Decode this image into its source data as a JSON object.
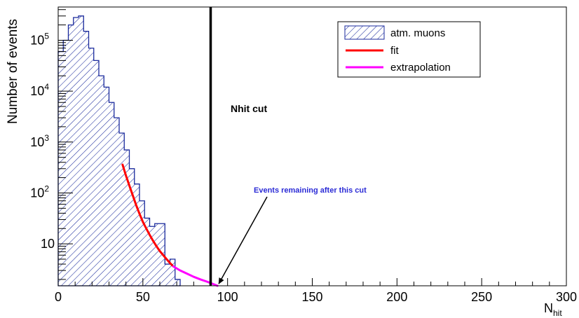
{
  "chart_data": {
    "type": "histogram",
    "xlabel": "N",
    "xlabel_sub": "hit",
    "ylabel": "Number of events",
    "x_range": [
      0,
      300
    ],
    "y_range": [
      1.5,
      450000
    ],
    "y_scale": "log",
    "x_ticks": [
      0,
      50,
      100,
      150,
      200,
      250,
      300
    ],
    "y_ticks": [
      {
        "value": 10,
        "base": "10",
        "exp": ""
      },
      {
        "value": 100,
        "base": "10",
        "exp": "2"
      },
      {
        "value": 1000,
        "base": "10",
        "exp": "3"
      },
      {
        "value": 10000,
        "base": "10",
        "exp": "4"
      },
      {
        "value": 100000,
        "base": "10",
        "exp": "5"
      }
    ],
    "bin_width": 3,
    "series": [
      {
        "name": "atm. muons",
        "kind": "histogram",
        "color": "#1a2a9c",
        "bins": [
          {
            "x": 0,
            "y": 60000
          },
          {
            "x": 3,
            "y": 100000
          },
          {
            "x": 6,
            "y": 200000
          },
          {
            "x": 9,
            "y": 280000
          },
          {
            "x": 12,
            "y": 300000
          },
          {
            "x": 15,
            "y": 150000
          },
          {
            "x": 18,
            "y": 70000
          },
          {
            "x": 21,
            "y": 40000
          },
          {
            "x": 24,
            "y": 20000
          },
          {
            "x": 27,
            "y": 12000
          },
          {
            "x": 30,
            "y": 6000
          },
          {
            "x": 33,
            "y": 3000
          },
          {
            "x": 36,
            "y": 1500
          },
          {
            "x": 39,
            "y": 700
          },
          {
            "x": 42,
            "y": 300
          },
          {
            "x": 45,
            "y": 150
          },
          {
            "x": 48,
            "y": 70
          },
          {
            "x": 51,
            "y": 32
          },
          {
            "x": 54,
            "y": 22
          },
          {
            "x": 57,
            "y": 25
          },
          {
            "x": 60,
            "y": 25
          },
          {
            "x": 63,
            "y": 4
          },
          {
            "x": 66,
            "y": 5
          },
          {
            "x": 69,
            "y": 2
          }
        ]
      },
      {
        "name": "fit",
        "kind": "line",
        "color": "#ff0000",
        "x": [
          38,
          40,
          42,
          44,
          46,
          48,
          50,
          52,
          54,
          56,
          58,
          60,
          62,
          64,
          66,
          68
        ],
        "y": [
          360,
          220,
          140,
          90,
          58,
          39,
          27,
          20,
          15,
          11.5,
          9,
          7.2,
          6,
          5,
          4.2,
          3.6
        ]
      },
      {
        "name": "extrapolation",
        "kind": "line",
        "color": "#ff00ff",
        "x": [
          68,
          72,
          76,
          80,
          84,
          88,
          92,
          94
        ],
        "y": [
          3.6,
          3.0,
          2.6,
          2.25,
          2.0,
          1.8,
          1.6,
          1.5
        ]
      }
    ],
    "cut": {
      "x": 90,
      "label": "Nhit cut",
      "color": "#000000"
    },
    "annotation": {
      "text": "Events remaining after this cut",
      "color": "#2b2bd6",
      "arrow_to_x": 94,
      "arrow_to_y": 1.5
    },
    "legend_position": "top-right",
    "grid": false
  }
}
